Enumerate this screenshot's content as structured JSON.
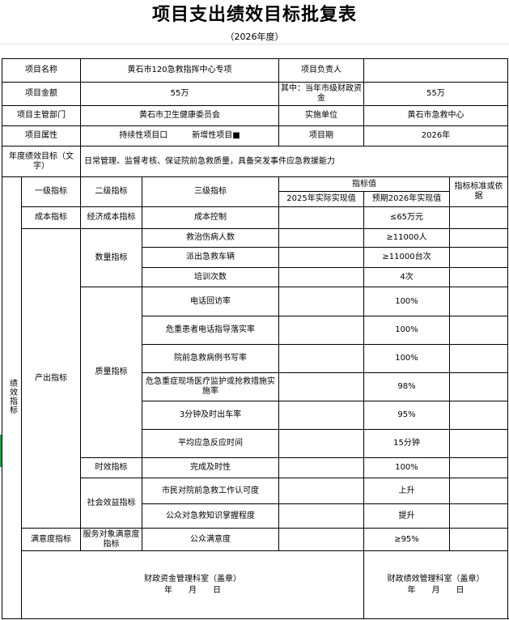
{
  "title": "项目支出绩效目标批复表",
  "subtitle": "（2026年度）",
  "info": {
    "project_name_label": "项目名称",
    "project_name": "黄石市120急救指挥中心专项",
    "leader_label": "项目负责人",
    "leader": "",
    "amount_label": "项目金额",
    "amount": "55万",
    "city_fund_label": "其中：当年市级财政资金",
    "city_fund": "55万",
    "dept_label": "项目主管部门",
    "dept": "黄石市卫生健康委员会",
    "impl_label": "实施单位",
    "impl": "黄石市急救中心",
    "attr_label": "项目属性",
    "attr_continuing": "持续性项目口",
    "attr_new": "新增性项目■",
    "period_label": "项目期",
    "period": "2026年",
    "goal_label": "年度绩效目标（文字）",
    "goal": "日常管理、监督考核、保证院前急救质量，具备突发事件应急救援能力"
  },
  "metrics": {
    "side_label": "绩效指标",
    "headers": {
      "l1": "一级指标",
      "l2": "二级指标",
      "l3": "三级指标",
      "value": "指标值",
      "y2025": "2025年实际实现值",
      "y2026": "预期2026年实现值",
      "basis": "指标标准或依据"
    },
    "cost": {
      "l1": "成本指标",
      "l2": "经济成本指标",
      "l3": "成本控制",
      "v2025": "",
      "v2026": "≤65万元",
      "basis": ""
    },
    "output_label": "产出指标",
    "quantity_label": "数量指标",
    "quantity": [
      {
        "l3": "救治伤病人数",
        "v2026": "≥11000人"
      },
      {
        "l3": "派出急救车辆",
        "v2026": "≥11000台次"
      },
      {
        "l3": "培训次数",
        "v2026": "4次"
      }
    ],
    "quality_label": "质量指标",
    "quality": [
      {
        "l3": "电话回访率",
        "v2026": "100%"
      },
      {
        "l3": "危重患者电话指导落实率",
        "v2026": "100%"
      },
      {
        "l3": "院前急救病例书写率",
        "v2026": "100%"
      },
      {
        "l3": "危急重症现场医疗监护或抢救措施实施率",
        "v2026": "98%"
      },
      {
        "l3": "3分钟及时出车率",
        "v2026": "95%"
      },
      {
        "l3": "平均应急反应时间",
        "v2026": "15分钟"
      }
    ],
    "timeliness_label": "时效指标",
    "timeliness": [
      {
        "l3": "完成及时性",
        "v2026": "100%"
      }
    ],
    "social_label": "社会效益指标",
    "social": [
      {
        "l3": "市民对院前急救工作认可度",
        "v2026": "上升"
      },
      {
        "l3": "公众对急救知识掌握程度",
        "v2026": "提升"
      }
    ],
    "satisfaction": {
      "l1": "满意度指标",
      "l2": "服务对象满意度指标",
      "l3": "公众满意度",
      "v2026": "≥95%"
    }
  },
  "footer": {
    "left": "财政资金管理科室（盖章）",
    "right": "财政绩效管理科室（盖章）",
    "date": "年　　月　　日"
  }
}
